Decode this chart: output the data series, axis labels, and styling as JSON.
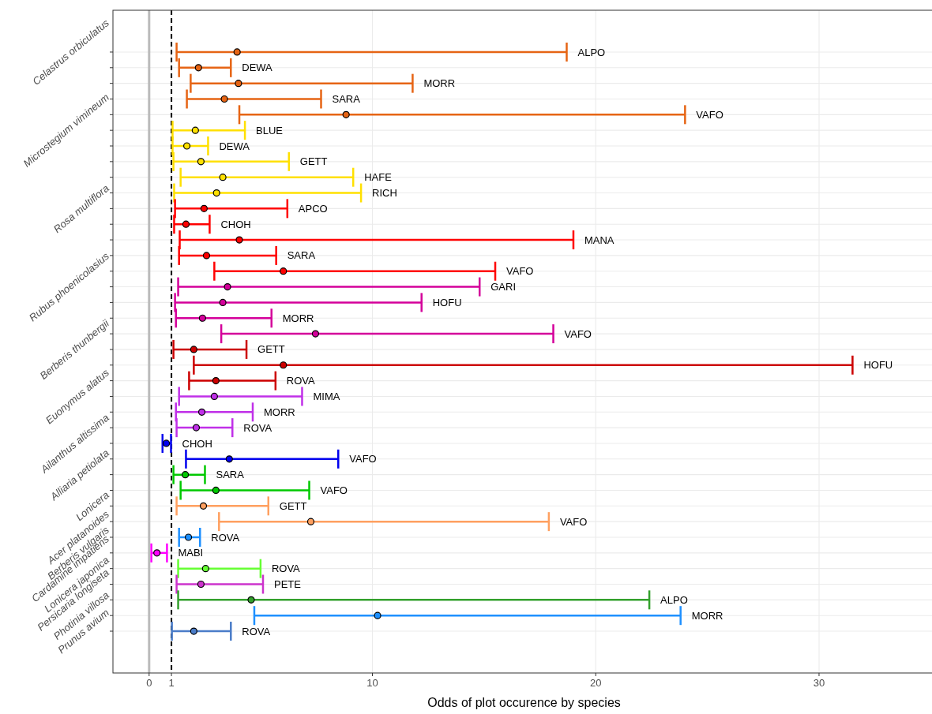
{
  "chart_data": {
    "type": "scatter",
    "orientation": "horizontal",
    "xlabel": "Odds of plot occurence by species",
    "categories": [
      "Celastrus orbiculatus",
      null,
      null,
      null,
      null,
      "Microstegium vimineum",
      null,
      null,
      null,
      null,
      "Rosa multiflora",
      null,
      null,
      null,
      null,
      "Rubus phoenicolasius",
      null,
      null,
      null,
      "Berberis thunbergii",
      null,
      null,
      "Euonymus alatus",
      null,
      null,
      "Ailanthus altissima",
      null,
      "Alliaria petiolata",
      null,
      "Lonicera",
      null,
      "Acer platanoides",
      "Berberis vulgaris",
      "Cardamine impatiens",
      "Lonicera japonica",
      "Persicaria longiseta",
      "Photinia villosa",
      "Prunus avium"
    ],
    "values": [
      3.94,
      2.21,
      4.0,
      3.37,
      8.82,
      2.07,
      1.69,
      2.32,
      3.3,
      3.02,
      2.46,
      1.65,
      4.04,
      2.57,
      6.01,
      3.51,
      3.3,
      2.39,
      7.45,
      2.0,
      6.01,
      2.99,
      2.92,
      2.36,
      2.11,
      0.77,
      3.59,
      1.62,
      2.99,
      2.43,
      7.24,
      1.76,
      0.35,
      2.53,
      2.32,
      4.57,
      10.23,
      2.0
    ],
    "errors": [
      [
        1.23,
        18.7
      ],
      [
        1.34,
        3.66
      ],
      [
        1.86,
        11.8
      ],
      [
        1.69,
        7.7
      ],
      [
        4.04,
        24.0
      ],
      [
        1.05,
        4.29
      ],
      [
        1.05,
        2.64
      ],
      [
        1.09,
        6.26
      ],
      [
        1.41,
        9.14
      ],
      [
        1.12,
        9.49
      ],
      [
        1.16,
        6.19
      ],
      [
        1.12,
        2.71
      ],
      [
        1.37,
        19.0
      ],
      [
        1.34,
        5.69
      ],
      [
        2.92,
        15.5
      ],
      [
        1.3,
        14.8
      ],
      [
        1.16,
        12.2
      ],
      [
        1.2,
        5.48
      ],
      [
        3.23,
        18.1
      ],
      [
        1.09,
        4.36
      ],
      [
        2.0,
        31.5
      ],
      [
        1.79,
        5.66
      ],
      [
        1.34,
        6.85
      ],
      [
        1.2,
        4.64
      ],
      [
        1.23,
        3.73
      ],
      [
        0.6,
        0.98
      ],
      [
        1.65,
        8.47
      ],
      [
        1.09,
        2.5
      ],
      [
        1.41,
        7.17
      ],
      [
        1.23,
        5.34
      ],
      [
        3.13,
        17.9
      ],
      [
        1.34,
        2.28
      ],
      [
        0.1,
        0.8
      ],
      [
        1.3,
        4.99
      ],
      [
        1.23,
        5.1
      ],
      [
        1.3,
        22.4
      ],
      [
        4.71,
        23.8
      ],
      [
        1.02,
        3.66
      ]
    ],
    "annotations": [
      {
        "text": "ALPO",
        "x": 18.7
      },
      {
        "text": "DEWA",
        "x": 3.66
      },
      {
        "text": "MORR",
        "x": 11.8
      },
      {
        "text": "SARA",
        "x": 7.7
      },
      {
        "text": "VAFO",
        "x": 24.0
      },
      {
        "text": "BLUE",
        "x": 4.29
      },
      {
        "text": "DEWA",
        "x": 2.64
      },
      {
        "text": "GETT",
        "x": 6.26
      },
      {
        "text": "HAFE",
        "x": 9.14
      },
      {
        "text": "RICH",
        "x": 9.49
      },
      {
        "text": "APCO",
        "x": 6.19
      },
      {
        "text": "CHOH",
        "x": 2.71
      },
      {
        "text": "MANA",
        "x": 19.0
      },
      {
        "text": "SARA",
        "x": 5.69
      },
      {
        "text": "VAFO",
        "x": 15.5
      },
      {
        "text": "GARI",
        "x": 14.8
      },
      {
        "text": "HOFU",
        "x": 12.2
      },
      {
        "text": "MORR",
        "x": 5.48
      },
      {
        "text": "VAFO",
        "x": 18.1
      },
      {
        "text": "GETT",
        "x": 4.36
      },
      {
        "text": "HOFU",
        "x": 31.5
      },
      {
        "text": "ROVA",
        "x": 5.66
      },
      {
        "text": "MIMA",
        "x": 6.85
      },
      {
        "text": "MORR",
        "x": 4.64
      },
      {
        "text": "ROVA",
        "x": 3.73
      },
      {
        "text": "CHOH",
        "x": 0.98
      },
      {
        "text": "VAFO",
        "x": 8.47
      },
      {
        "text": "SARA",
        "x": 2.5
      },
      {
        "text": "VAFO",
        "x": 7.17
      },
      {
        "text": "GETT",
        "x": 5.34
      },
      {
        "text": "VAFO",
        "x": 17.9
      },
      {
        "text": "ROVA",
        "x": 2.28
      },
      {
        "text": "MABI",
        "x": 0.8
      },
      {
        "text": "ROVA",
        "x": 4.99
      },
      {
        "text": "PETE",
        "x": 5.1
      },
      {
        "text": "ALPO",
        "x": 22.4
      },
      {
        "text": "MORR",
        "x": 23.8
      },
      {
        "text": "ROVA",
        "x": 3.66
      }
    ],
    "colors": [
      "#e66414",
      "#e66414",
      "#e66414",
      "#e66414",
      "#e66414",
      "#ffe000",
      "#ffe000",
      "#ffe000",
      "#ffe000",
      "#ffe000",
      "#ff0000",
      "#ff0000",
      "#ff0000",
      "#ff0000",
      "#ff0000",
      "#d4009a",
      "#d4009a",
      "#d4009a",
      "#d4009a",
      "#cc0000",
      "#cc0000",
      "#cc0000",
      "#c030e8",
      "#c030e8",
      "#c030e8",
      "#0000ee",
      "#0000ee",
      "#00c800",
      "#00c800",
      "#ffa060",
      "#ffa060",
      "#1e90ff",
      "#ff00ff",
      "#66ff33",
      "#cc33cc",
      "#33a02c",
      "#1e90ff",
      "#4a7cc8"
    ],
    "xlim": [
      -1.62,
      35.2
    ],
    "xticks": [
      0,
      1,
      10,
      20,
      30
    ],
    "grid": true,
    "marker": "circle",
    "ref_lines": [
      {
        "axis": "x",
        "value": 0,
        "color": "#bbbbbb",
        "line_style": "solid"
      },
      {
        "axis": "x",
        "value": 1,
        "color": "#000000",
        "line_style": "dashed"
      }
    ]
  }
}
